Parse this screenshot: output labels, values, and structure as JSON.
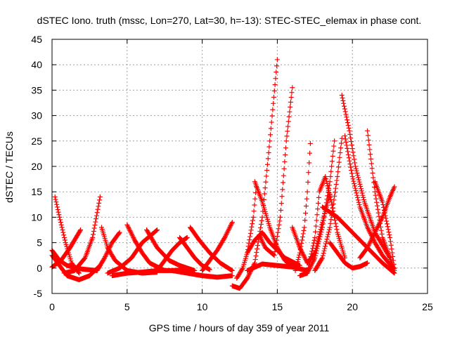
{
  "chart_data": {
    "type": "scatter",
    "title": "dSTEC Iono. truth (mssc, Lon=270, Lat=30, h=-13): STEC-STEC_elemax in phase cont.",
    "xlabel": "GPS time / hours of day 359 of year 2011",
    "ylabel": "dSTEC  / TECUs",
    "xlim": [
      0,
      25
    ],
    "ylim": [
      -5,
      45
    ],
    "xticks": [
      "0",
      "5",
      "10",
      "15",
      "20",
      "25"
    ],
    "yticks": [
      "-5",
      "0",
      "5",
      "10",
      "15",
      "20",
      "25",
      "30",
      "35",
      "40",
      "45"
    ],
    "grid": true,
    "marker": "+",
    "color": "#ff0000",
    "series": [
      {
        "x": [
          0.0,
          1.0,
          1.8,
          2.5,
          3.2
        ],
        "y": [
          2.5,
          -1.5,
          -2.3,
          -1.5,
          0.5
        ]
      },
      {
        "x": [
          0.2,
          0.5,
          0.9,
          1.3,
          1.8
        ],
        "y": [
          14.0,
          10.0,
          5.0,
          1.0,
          -1.0
        ]
      },
      {
        "x": [
          0.0,
          0.6,
          1.2,
          1.6,
          1.9
        ],
        "y": [
          0.2,
          1.5,
          4.0,
          6.0,
          7.5
        ]
      },
      {
        "x": [
          0.0,
          0.5,
          1.0,
          2.0,
          3.0
        ],
        "y": [
          3.5,
          1.5,
          0.5,
          -0.2,
          -0.5
        ]
      },
      {
        "x": [
          0.8,
          1.5,
          2.2,
          2.7,
          3.2
        ],
        "y": [
          -1.0,
          -0.5,
          2.0,
          6.0,
          14.0
        ]
      },
      {
        "x": [
          3.3,
          3.7,
          4.2,
          5.0,
          6.0,
          7.0
        ],
        "y": [
          8.0,
          4.0,
          1.5,
          -0.5,
          -1.0,
          -0.8
        ]
      },
      {
        "x": [
          3.7,
          4.5,
          5.3,
          6.0,
          7.0
        ],
        "y": [
          -1.0,
          0.0,
          2.0,
          5.0,
          7.5
        ]
      },
      {
        "x": [
          3.0,
          3.5,
          4.0,
          4.5
        ],
        "y": [
          -0.5,
          2.0,
          5.0,
          7.0
        ]
      },
      {
        "x": [
          5.0,
          5.5,
          6.0,
          6.5,
          7.5
        ],
        "y": [
          8.5,
          5.5,
          3.0,
          1.0,
          -0.5
        ]
      },
      {
        "x": [
          4.0,
          5.0,
          6.0,
          7.0,
          8.0,
          9.0
        ],
        "y": [
          -1.5,
          -1.0,
          -0.8,
          -0.5,
          -0.5,
          -0.3
        ]
      },
      {
        "x": [
          6.3,
          7.0,
          7.8,
          8.5,
          9.5
        ],
        "y": [
          7.5,
          4.0,
          1.5,
          0.5,
          -0.5
        ]
      },
      {
        "x": [
          7.0,
          7.5,
          8.0,
          8.5,
          9.0
        ],
        "y": [
          -0.5,
          1.5,
          3.5,
          5.0,
          6.0
        ]
      },
      {
        "x": [
          8.5,
          9.0,
          9.5,
          10.0,
          10.5
        ],
        "y": [
          6.0,
          4.0,
          2.0,
          0.5,
          -0.3
        ]
      },
      {
        "x": [
          9.2,
          9.8,
          10.5,
          11.2,
          12.0
        ],
        "y": [
          8.0,
          5.5,
          3.0,
          1.0,
          -0.5
        ]
      },
      {
        "x": [
          10.0,
          10.5,
          11.0,
          11.5,
          12.0
        ],
        "y": [
          -0.5,
          1.5,
          3.5,
          6.0,
          9.0
        ]
      },
      {
        "x": [
          8.0,
          9.0,
          10.0,
          11.0,
          12.0
        ],
        "y": [
          -0.5,
          -1.0,
          -1.5,
          -1.8,
          -1.5
        ]
      },
      {
        "x": [
          12.0,
          12.5,
          13.0,
          13.5,
          14.0,
          14.5,
          15.0
        ],
        "y": [
          -3.5,
          -4.0,
          -2.0,
          1.0,
          10.0,
          25.0,
          41.0
        ]
      },
      {
        "x": [
          12.3,
          12.7,
          13.0,
          13.4,
          13.6
        ],
        "y": [
          -2.0,
          0.0,
          3.0,
          10.0,
          16.0
        ]
      },
      {
        "x": [
          13.5,
          14.0,
          14.5,
          15.0,
          15.5,
          16.0
        ],
        "y": [
          17.0,
          13.0,
          8.0,
          4.0,
          1.5,
          0.5
        ]
      },
      {
        "x": [
          13.8,
          14.2,
          14.8,
          15.2,
          15.6,
          16.0
        ],
        "y": [
          6.5,
          4.0,
          2.5,
          10.0,
          25.0,
          35.5
        ]
      },
      {
        "x": [
          13.0,
          13.5,
          14.0,
          14.5,
          15.5,
          16.5
        ],
        "y": [
          3.0,
          5.5,
          7.0,
          5.0,
          2.0,
          0.5
        ]
      },
      {
        "x": [
          13.0,
          14.0,
          15.0,
          16.0,
          17.0
        ],
        "y": [
          -0.5,
          0.8,
          0.5,
          0.2,
          -0.5
        ]
      },
      {
        "x": [
          16.0,
          16.5,
          17.0,
          17.5,
          18.0,
          18.5
        ],
        "y": [
          8.0,
          4.0,
          1.0,
          3.0,
          9.0,
          14.5
        ]
      },
      {
        "x": [
          16.2,
          16.5,
          16.8,
          17.0,
          17.2
        ],
        "y": [
          -0.5,
          3.0,
          8.0,
          15.0,
          24.5
        ]
      },
      {
        "x": [
          16.5,
          17.0,
          17.5,
          18.0,
          18.5,
          18.8
        ],
        "y": [
          -1.5,
          -1.0,
          2.0,
          8.0,
          17.0,
          25.0
        ]
      },
      {
        "x": [
          17.0,
          17.5,
          17.8,
          18.2,
          18.6,
          19.0,
          19.5
        ],
        "y": [
          -1.0,
          6.0,
          15.0,
          18.0,
          13.0,
          7.0,
          2.0
        ]
      },
      {
        "x": [
          17.5,
          18.0,
          18.5,
          19.0,
          19.3
        ],
        "y": [
          -0.5,
          2.0,
          8.0,
          18.0,
          25.5
        ]
      },
      {
        "x": [
          19.3,
          19.8,
          20.2,
          20.8,
          21.5,
          22.5
        ],
        "y": [
          34.0,
          27.0,
          20.0,
          13.0,
          7.0,
          2.0
        ]
      },
      {
        "x": [
          19.5,
          20.0,
          20.5,
          21.0,
          21.5,
          22.0,
          22.7
        ],
        "y": [
          26.0,
          18.0,
          12.0,
          8.0,
          5.0,
          2.5,
          0.0
        ]
      },
      {
        "x": [
          18.5,
          19.0,
          19.5,
          20.0,
          20.5,
          21.0
        ],
        "y": [
          5.0,
          3.0,
          1.0,
          0.0,
          0.3,
          1.0
        ]
      },
      {
        "x": [
          21.0,
          21.5,
          22.0,
          22.5,
          22.8
        ],
        "y": [
          27.0,
          15.0,
          6.0,
          2.0,
          -0.5
        ]
      },
      {
        "x": [
          21.5,
          22.0,
          22.5,
          22.8
        ],
        "y": [
          17.0,
          13.0,
          6.0,
          0.0
        ]
      },
      {
        "x": [
          20.5,
          21.0,
          21.5,
          22.0,
          22.5,
          22.8
        ],
        "y": [
          2.0,
          4.0,
          7.0,
          10.0,
          14.0,
          16.0
        ]
      },
      {
        "x": [
          18.0,
          19.0,
          20.0,
          21.0,
          22.0,
          22.8
        ],
        "y": [
          12.0,
          10.0,
          7.0,
          4.0,
          1.0,
          -1.0
        ]
      }
    ]
  }
}
